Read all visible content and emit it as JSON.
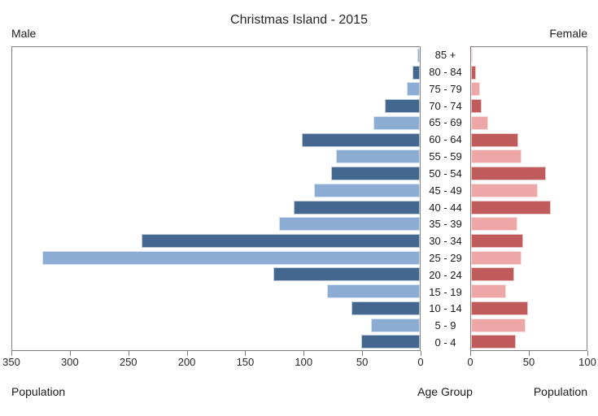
{
  "header": {
    "title": "Christmas Island - 2015",
    "male_label": "Male",
    "female_label": "Female"
  },
  "footer": {
    "left_axis_title": "Population",
    "center_axis_title": "Age Group",
    "right_axis_title": "Population"
  },
  "chart_data": {
    "type": "bar",
    "subtype": "population_pyramid",
    "title": "Christmas Island - 2015",
    "age_groups_top_to_bottom": [
      "85 +",
      "80 - 84",
      "75 - 79",
      "70 - 74",
      "65 - 69",
      "60 - 64",
      "55 - 59",
      "50 - 54",
      "45 - 49",
      "40 - 44",
      "35 - 39",
      "30 - 34",
      "25 - 29",
      "20 - 24",
      "15 - 19",
      "10 - 14",
      "5 - 9",
      "0 - 4"
    ],
    "series": [
      {
        "name": "Male",
        "side": "left",
        "values": [
          2,
          6,
          11,
          30,
          40,
          101,
          72,
          76,
          91,
          108,
          121,
          239,
          324,
          126,
          80,
          59,
          42,
          50
        ],
        "axis_min": 0,
        "axis_max": 350,
        "tick_labels": [
          "350",
          "300",
          "250",
          "200",
          "150",
          "100",
          "50",
          "0"
        ]
      },
      {
        "name": "Female",
        "side": "right",
        "values": [
          1,
          4,
          8,
          9,
          15,
          41,
          44,
          65,
          58,
          69,
          40,
          45,
          44,
          37,
          30,
          49,
          47,
          39
        ],
        "axis_min": 0,
        "axis_max": 100,
        "tick_labels": [
          "0",
          "50",
          "100"
        ]
      }
    ],
    "xlabel_left": "Population",
    "xlabel_right": "Population",
    "center_axis_label": "Age Group",
    "grid": false,
    "legend": "none",
    "color_pattern": "rows alternate light/dark; bottom row (0 - 4) dark",
    "colors": {
      "male_dark": "#44678f",
      "male_light": "#8cacd4",
      "female_dark": "#c05b5b",
      "female_light": "#eda7a6",
      "plot_border": "#7f7f7f",
      "text": "#262626"
    }
  }
}
